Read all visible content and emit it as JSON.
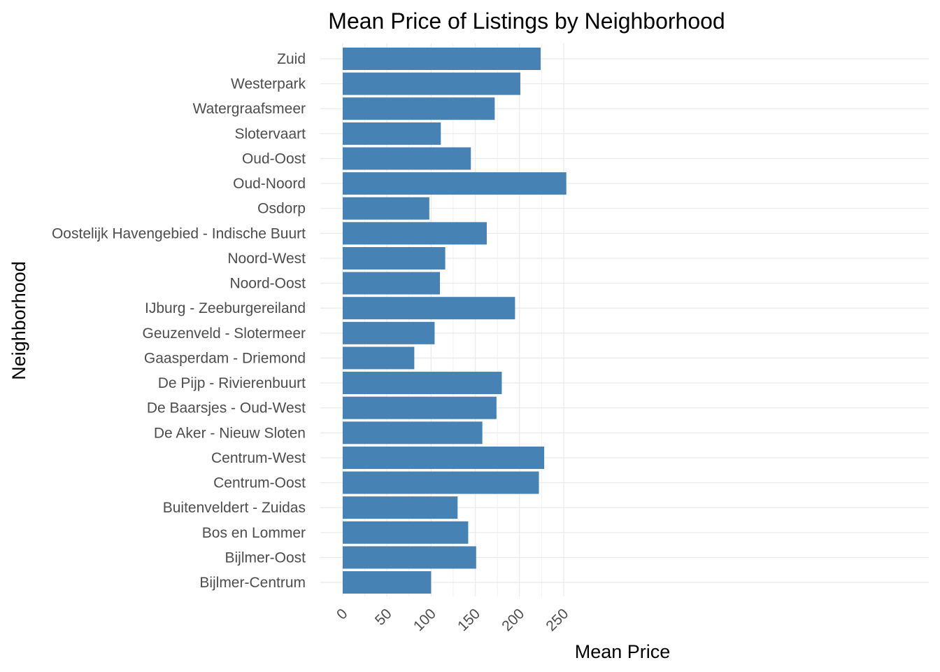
{
  "chart_data": {
    "type": "bar",
    "orientation": "horizontal",
    "title": "Mean Price of Listings by Neighborhood",
    "xlabel": "Mean Price",
    "ylabel": "Neighborhood",
    "xlim": [
      0,
      260
    ],
    "x_ticks": [
      0,
      50,
      100,
      150,
      200,
      250
    ],
    "bar_color": "#4682b4",
    "grid": true,
    "legend": "none",
    "categories": [
      "Zuid",
      "Westerpark",
      "Watergraafsmeer",
      "Slotervaart",
      "Oud-Oost",
      "Oud-Noord",
      "Osdorp",
      "Oostelijk Havengebied - Indische Buurt",
      "Noord-West",
      "Noord-Oost",
      "IJburg - Zeeburgereiland",
      "Geuzenveld - Slotermeer",
      "Gaasperdam - Driemond",
      "De Pijp - Rivierenbuurt",
      "De Baarsjes - Oud-West",
      "De Aker - Nieuw Sloten",
      "Centrum-West",
      "Centrum-Oost",
      "Buitenveldert - Zuidas",
      "Bos en Lommer",
      "Bijlmer-Oost",
      "Bijlmer-Centrum"
    ],
    "values": [
      224,
      201,
      172,
      111,
      145,
      253,
      98,
      163,
      116,
      110,
      195,
      104,
      81,
      180,
      174,
      158,
      228,
      222,
      130,
      142,
      151,
      100
    ]
  }
}
